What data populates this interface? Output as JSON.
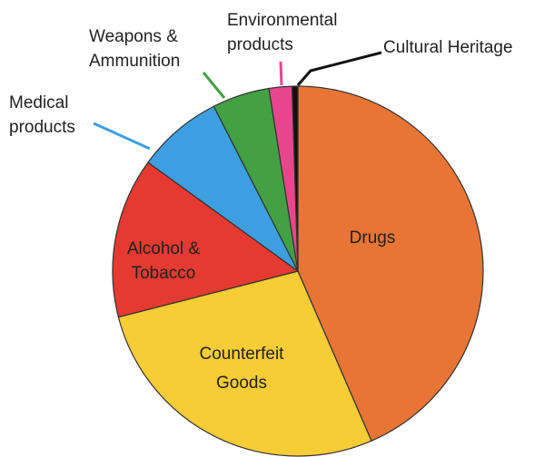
{
  "chart_data": {
    "type": "pie",
    "title": "",
    "start_angle_deg": 0,
    "direction": "clockwise",
    "slices": [
      {
        "name": "Drugs",
        "lines": [
          "Drugs"
        ],
        "value": 43.5,
        "color": "#E87535",
        "placement": "inside"
      },
      {
        "name": "Counterfeit Goods",
        "lines": [
          "Counterfeit",
          "Goods"
        ],
        "value": 27.5,
        "color": "#F7CC35",
        "placement": "inside"
      },
      {
        "name": "Alcohol & Tobacco",
        "lines": [
          "Alcohol &",
          "Tobacco"
        ],
        "value": 14,
        "color": "#E53A31",
        "placement": "inside"
      },
      {
        "name": "Medical products",
        "lines": [
          "Medical",
          "products"
        ],
        "value": 7.5,
        "color": "#3D9FE0",
        "placement": "outside"
      },
      {
        "name": "Weapons & Ammunition",
        "lines": [
          "Weapons &",
          "Ammunition"
        ],
        "value": 5,
        "color": "#43A043",
        "placement": "outside"
      },
      {
        "name": "Environmental products",
        "lines": [
          "Environmental",
          "products"
        ],
        "value": 2,
        "color": "#E8468C",
        "placement": "outside"
      },
      {
        "name": "Cultural Heritage",
        "lines": [
          "Cultural Heritage"
        ],
        "value": 0.5,
        "color": "#111111",
        "placement": "outside"
      }
    ]
  }
}
